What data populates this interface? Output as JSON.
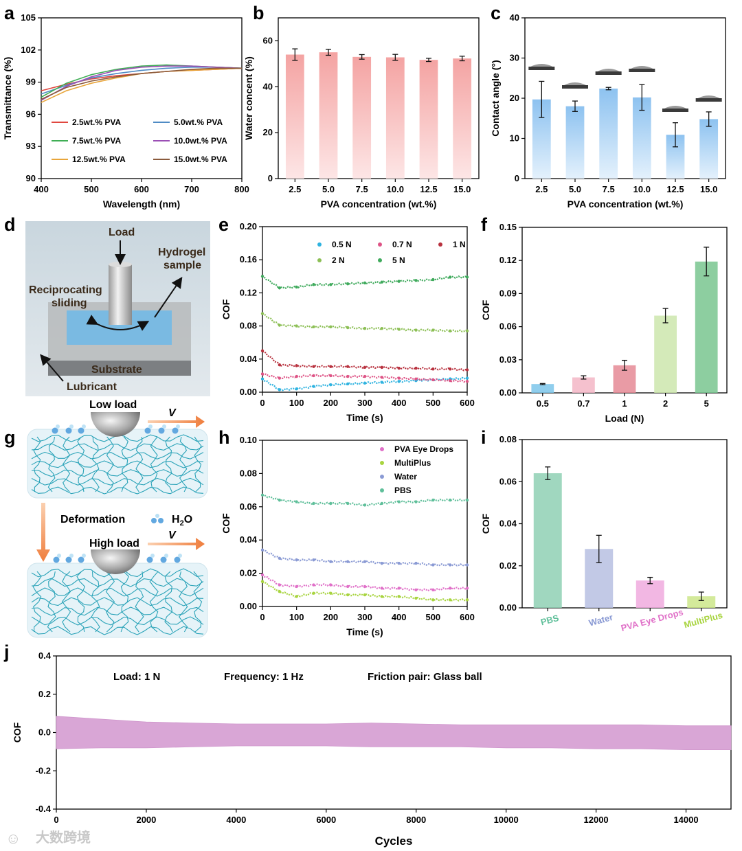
{
  "watermark": "大数跨境",
  "colors": {
    "bar_red": "#f4a9a8",
    "bar_blue": "#9ccbf2",
    "purple_band": "#d9a6d6"
  },
  "schematic_d": {
    "load": "Load",
    "hydrogel": "Hydrogel",
    "sample": "sample",
    "reciprocating": "Reciprocating",
    "sliding": "sliding",
    "substrate": "Substrate",
    "lubricant": "Lubricant"
  },
  "schematic_g": {
    "low_load": "Low load",
    "high_load": "High load",
    "deformation": "Deformation",
    "water_label": "H",
    "water_sub": "2",
    "water_o": "O",
    "velocity": "V"
  },
  "chart_data": [
    {
      "id": "a",
      "type": "line",
      "xlabel": "Wavelength (nm)",
      "ylabel": "Transmittance (%)",
      "xlim": [
        400,
        800
      ],
      "ylim": [
        90,
        105
      ],
      "xticks": [
        400,
        500,
        600,
        700,
        800
      ],
      "yticks": [
        90,
        93,
        96,
        99,
        102,
        105
      ],
      "x": [
        400,
        450,
        500,
        550,
        600,
        650,
        700,
        750,
        800
      ],
      "series": [
        {
          "name": "2.5wt.% PVA",
          "color": "#e0473f",
          "values": [
            98.2,
            98.8,
            99.3,
            99.6,
            99.8,
            100.0,
            100.1,
            100.2,
            100.3
          ]
        },
        {
          "name": "5.0wt.% PVA",
          "color": "#4f8bc4",
          "values": [
            97.9,
            98.7,
            99.4,
            99.8,
            100.1,
            100.3,
            100.4,
            100.4,
            100.3
          ]
        },
        {
          "name": "7.5wt.% PVA",
          "color": "#3fae55",
          "values": [
            97.6,
            98.9,
            99.7,
            100.2,
            100.5,
            100.6,
            100.5,
            100.4,
            100.3
          ]
        },
        {
          "name": "10.0wt.% PVA",
          "color": "#9b4fb5",
          "values": [
            97.3,
            98.6,
            99.5,
            100.1,
            100.4,
            100.5,
            100.5,
            100.4,
            100.3
          ]
        },
        {
          "name": "12.5wt.% PVA",
          "color": "#e8a53a",
          "values": [
            97.1,
            98.2,
            98.9,
            99.4,
            99.8,
            100.0,
            100.1,
            100.2,
            100.3
          ]
        },
        {
          "name": "15.0wt.% PVA",
          "color": "#8a5a3c",
          "values": [
            97.4,
            98.5,
            99.1,
            99.5,
            99.8,
            100.0,
            100.2,
            100.3,
            100.3
          ]
        }
      ]
    },
    {
      "id": "b",
      "type": "bar",
      "xlabel": "PVA concentration (wt.%)",
      "ylabel": "Water concent (%)",
      "ylim": [
        0,
        70
      ],
      "yticks": [
        0,
        20,
        40,
        60
      ],
      "categories": [
        "2.5",
        "5.0",
        "7.5",
        "10.0",
        "12.5",
        "15.0"
      ],
      "values": [
        54.0,
        55.0,
        53.0,
        52.8,
        51.7,
        52.3
      ],
      "errors": [
        2.5,
        1.3,
        1.0,
        1.3,
        0.7,
        1.0
      ]
    },
    {
      "id": "c",
      "type": "bar",
      "xlabel": "PVA concentration (wt.%)",
      "ylabel": "Contact angle (°)",
      "ylim": [
        0,
        40
      ],
      "yticks": [
        0,
        10,
        20,
        30,
        40
      ],
      "categories": [
        "2.5",
        "5.0",
        "7.5",
        "10.0",
        "12.5",
        "15.0"
      ],
      "values": [
        19.7,
        18.0,
        22.4,
        20.2,
        10.9,
        14.8
      ],
      "errors": [
        4.5,
        1.3,
        0.3,
        3.2,
        3.0,
        1.8
      ]
    },
    {
      "id": "e",
      "type": "line",
      "xlabel": "Time (s)",
      "ylabel": "COF",
      "xlim": [
        0,
        600
      ],
      "ylim": [
        0,
        0.2
      ],
      "xticks": [
        0,
        100,
        200,
        300,
        400,
        500,
        600
      ],
      "yticks": [
        0.0,
        0.04,
        0.08,
        0.12,
        0.16,
        0.2
      ],
      "ytick_labels": [
        "0.00",
        "0.04",
        "0.08",
        "0.12",
        "0.16",
        "0.20"
      ],
      "x": [
        0,
        50,
        100,
        150,
        200,
        250,
        300,
        350,
        400,
        450,
        500,
        550,
        600
      ],
      "series": [
        {
          "name": "0.5 N",
          "color": "#2fb3e0",
          "values": [
            0.016,
            0.003,
            0.004,
            0.007,
            0.009,
            0.01,
            0.011,
            0.012,
            0.013,
            0.014,
            0.015,
            0.016,
            0.017
          ]
        },
        {
          "name": "0.7 N",
          "color": "#de5486",
          "values": [
            0.022,
            0.017,
            0.019,
            0.02,
            0.02,
            0.019,
            0.019,
            0.018,
            0.017,
            0.016,
            0.015,
            0.014,
            0.013
          ]
        },
        {
          "name": "1 N",
          "color": "#b8323f",
          "values": [
            0.05,
            0.033,
            0.032,
            0.031,
            0.031,
            0.031,
            0.03,
            0.03,
            0.029,
            0.029,
            0.028,
            0.028,
            0.027
          ]
        },
        {
          "name": "2 N",
          "color": "#8cbf55",
          "values": [
            0.095,
            0.081,
            0.08,
            0.079,
            0.079,
            0.078,
            0.077,
            0.077,
            0.076,
            0.075,
            0.075,
            0.074,
            0.074
          ]
        },
        {
          "name": "5 N",
          "color": "#3faa5c",
          "values": [
            0.14,
            0.126,
            0.127,
            0.13,
            0.13,
            0.131,
            0.132,
            0.133,
            0.134,
            0.135,
            0.136,
            0.139,
            0.139
          ]
        }
      ]
    },
    {
      "id": "f",
      "type": "bar",
      "xlabel": "Load (N)",
      "ylabel": "COF",
      "ylim": [
        0,
        0.15
      ],
      "yticks": [
        0.0,
        0.03,
        0.06,
        0.09,
        0.12,
        0.15
      ],
      "ytick_labels": [
        "0.00",
        "0.03",
        "0.06",
        "0.09",
        "0.12",
        "0.15"
      ],
      "categories": [
        "0.5",
        "0.7",
        "1",
        "2",
        "5"
      ],
      "values": [
        0.008,
        0.014,
        0.025,
        0.07,
        0.119
      ],
      "errors": [
        0.0005,
        0.0015,
        0.0045,
        0.0065,
        0.013
      ],
      "colors": [
        "#7cc6ea",
        "#f3b6c6",
        "#e58a95",
        "#cde6ad",
        "#79c58f"
      ]
    },
    {
      "id": "h",
      "type": "line",
      "xlabel": "Time (s)",
      "ylabel": "COF",
      "xlim": [
        0,
        600
      ],
      "ylim": [
        0,
        0.1
      ],
      "xticks": [
        0,
        100,
        200,
        300,
        400,
        500,
        600
      ],
      "yticks": [
        0.0,
        0.02,
        0.04,
        0.06,
        0.08,
        0.1
      ],
      "ytick_labels": [
        "0.00",
        "0.02",
        "0.04",
        "0.06",
        "0.08",
        "0.10"
      ],
      "x": [
        0,
        50,
        100,
        150,
        200,
        250,
        300,
        350,
        400,
        450,
        500,
        550,
        600
      ],
      "series": [
        {
          "name": "PVA Eye Drops",
          "color": "#e070c8",
          "values": [
            0.019,
            0.013,
            0.012,
            0.013,
            0.013,
            0.012,
            0.012,
            0.011,
            0.011,
            0.01,
            0.01,
            0.011,
            0.011
          ]
        },
        {
          "name": "MultiPlus",
          "color": "#a8d43f",
          "values": [
            0.015,
            0.009,
            0.006,
            0.008,
            0.008,
            0.007,
            0.007,
            0.006,
            0.006,
            0.005,
            0.004,
            0.004,
            0.004
          ]
        },
        {
          "name": "Water",
          "color": "#8a9ad4",
          "values": [
            0.034,
            0.029,
            0.028,
            0.028,
            0.027,
            0.027,
            0.027,
            0.026,
            0.026,
            0.026,
            0.025,
            0.025,
            0.025
          ]
        },
        {
          "name": "PBS",
          "color": "#5fbf9a",
          "values": [
            0.067,
            0.064,
            0.063,
            0.062,
            0.062,
            0.062,
            0.061,
            0.062,
            0.063,
            0.063,
            0.064,
            0.064,
            0.064
          ]
        }
      ]
    },
    {
      "id": "i",
      "type": "bar",
      "ylabel": "COF",
      "ylim": [
        0,
        0.08
      ],
      "yticks": [
        0.0,
        0.02,
        0.04,
        0.06,
        0.08
      ],
      "ytick_labels": [
        "0.00",
        "0.02",
        "0.04",
        "0.06",
        "0.08"
      ],
      "categories": [
        "PBS",
        "Water",
        "PVA Eye Drops",
        "MultiPlus"
      ],
      "category_colors": [
        "#5fbf9a",
        "#8a9ad4",
        "#e070c8",
        "#a8d43f"
      ],
      "values": [
        0.064,
        0.028,
        0.013,
        0.0055
      ],
      "errors": [
        0.003,
        0.0065,
        0.0015,
        0.002
      ],
      "colors": [
        "#8fd0b4",
        "#b7bfe2",
        "#f0aade",
        "#cde689"
      ]
    },
    {
      "id": "j",
      "type": "area",
      "xlabel": "Cycles",
      "ylabel": "COF",
      "xlim": [
        0,
        15000
      ],
      "ylim": [
        -0.4,
        0.4
      ],
      "xticks": [
        0,
        2000,
        4000,
        6000,
        8000,
        10000,
        12000,
        14000
      ],
      "yticks": [
        -0.4,
        -0.2,
        0.0,
        0.2,
        0.4
      ],
      "ytick_labels": [
        "-0.4",
        "-0.2",
        "0.0",
        "0.2",
        "0.4"
      ],
      "x": [
        0,
        1000,
        2000,
        3000,
        4000,
        5000,
        6000,
        7000,
        8000,
        9000,
        10000,
        11000,
        12000,
        13000,
        14000,
        15000
      ],
      "upper": [
        0.085,
        0.07,
        0.055,
        0.05,
        0.045,
        0.045,
        0.045,
        0.05,
        0.045,
        0.04,
        0.04,
        0.04,
        0.04,
        0.04,
        0.035,
        0.035
      ],
      "lower": [
        -0.085,
        -0.08,
        -0.08,
        -0.075,
        -0.07,
        -0.07,
        -0.07,
        -0.075,
        -0.075,
        -0.075,
        -0.08,
        -0.08,
        -0.085,
        -0.085,
        -0.09,
        -0.09
      ],
      "annotations": [
        "Load: 1 N",
        "Frequency: 1 Hz",
        "Friction pair: Glass ball"
      ]
    }
  ]
}
